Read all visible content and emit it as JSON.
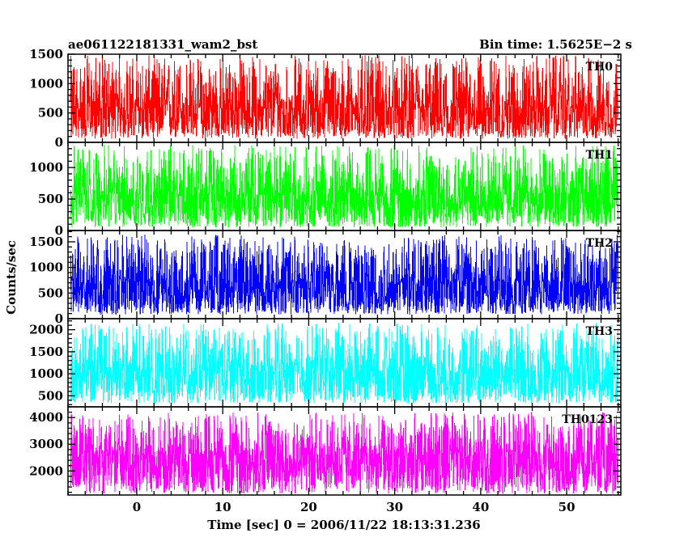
{
  "header": {
    "title": "ae061122181331_wam2_bst",
    "bin_time": "Bin time: 1.5625E−2 s"
  },
  "chart_data": {
    "type": "line",
    "title": "ae061122181331_wam2_bst",
    "xlabel": "Time [sec] 0 = 2006/11/22 18:13:31.236",
    "ylabel": "Counts/sec",
    "xlim": [
      -8.0,
      56.3
    ],
    "xticks": [
      0,
      10,
      20,
      30,
      40,
      50
    ],
    "x_tick_labels": [
      "0",
      "10",
      "20",
      "30",
      "40",
      "50"
    ],
    "x_range_data": [
      -7.7,
      56.0
    ],
    "bin_time_s": 0.015625,
    "grid": false,
    "panels": [
      {
        "name": "TH0",
        "color": "#ff0000",
        "ylim": [
          0,
          1500
        ],
        "yticks": [
          0,
          500,
          1000,
          1500
        ],
        "y_tick_labels": [
          "0",
          "500",
          "1000",
          "1500"
        ],
        "mean": 580,
        "min": 60,
        "max": 1480
      },
      {
        "name": "TH1",
        "color": "#00ff00",
        "ylim": [
          0,
          1400
        ],
        "yticks": [
          0,
          500,
          1000
        ],
        "y_tick_labels": [
          "0",
          "500",
          "1000"
        ],
        "mean": 560,
        "min": 50,
        "max": 1360
      },
      {
        "name": "TH2",
        "color": "#0000ff",
        "ylim": [
          0,
          1720
        ],
        "yticks": [
          0,
          500,
          1000,
          1500
        ],
        "y_tick_labels": [
          "0",
          "500",
          "1000",
          "1500"
        ],
        "mean": 700,
        "min": 80,
        "max": 1640
      },
      {
        "name": "TH3",
        "color": "#00ffff",
        "ylim": [
          250,
          2250
        ],
        "yticks": [
          500,
          1000,
          1500,
          2000
        ],
        "y_tick_labels": [
          "500",
          "1000",
          "1500",
          "2000"
        ],
        "mean": 1050,
        "min": 330,
        "max": 2150
      },
      {
        "name": "TH0123",
        "color": "#ff00ff",
        "ylim": [
          1100,
          4400
        ],
        "yticks": [
          2000,
          3000,
          4000
        ],
        "y_tick_labels": [
          "2000",
          "3000",
          "4000"
        ],
        "mean": 2600,
        "min": 1150,
        "max": 4200
      }
    ]
  }
}
